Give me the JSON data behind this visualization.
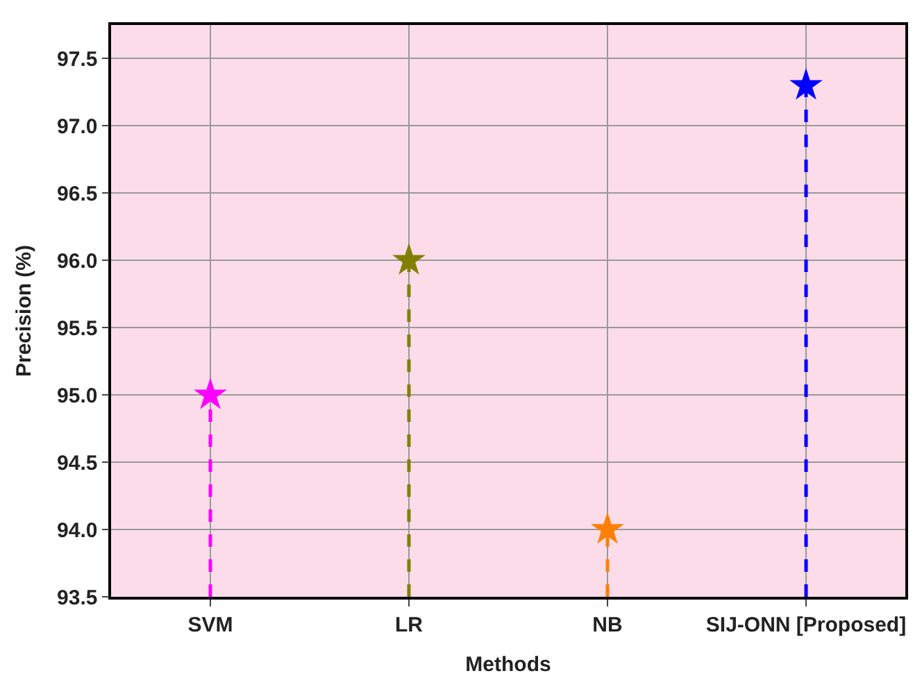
{
  "chart_data": {
    "type": "lollipop",
    "xlabel": "Methods",
    "ylabel": "Precision (%)",
    "categories": [
      "SVM",
      "LR",
      "NB",
      "SIJ-ONN [Proposed]"
    ],
    "values": [
      95.0,
      96.0,
      94.0,
      97.3
    ],
    "colors": [
      "#ff00ff",
      "#808000",
      "#ff8000",
      "#0000ff"
    ],
    "ylim": [
      93.5,
      97.75
    ],
    "yticks": [
      93.5,
      {
        "value": 94,
        "label": "94.0"
      },
      94.5,
      {
        "value": 95,
        "label": "95.0"
      },
      95.5,
      {
        "value": 96,
        "label": "96.0"
      },
      96.5,
      {
        "value": 97,
        "label": "97.0"
      },
      97.5
    ],
    "grid": true,
    "marker": "star",
    "line_style": "dashed"
  }
}
